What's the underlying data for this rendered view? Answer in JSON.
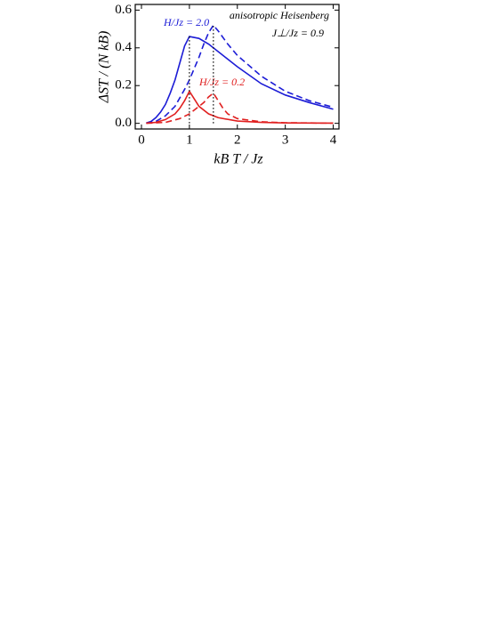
{
  "chart_data": {
    "type": "line",
    "xlabel": "kB T / Jz",
    "ylabel": "ΔST / (N kB)",
    "xlim": [
      -0.13,
      4.12
    ],
    "ylim": [
      -0.03,
      0.63
    ],
    "xticks": [
      0,
      1,
      2,
      3,
      4
    ],
    "yticks": [
      {
        "value": 0,
        "label": "0.0"
      },
      0.2,
      0.4,
      0.6
    ],
    "annotations": [
      "anisotropic Heisenberg",
      "J⊥/Jz = 0.9",
      "H/Jz = 2.0",
      "H/Jz = 0.2"
    ],
    "series": [
      {
        "color": "#1c1cd6",
        "dash": "solid",
        "x": [
          0.1,
          0.2,
          0.3,
          0.4,
          0.5,
          0.6,
          0.7,
          0.8,
          0.9,
          1.0,
          1.2,
          1.4,
          1.6,
          1.8,
          2.0,
          2.5,
          3.0,
          3.5,
          4.0
        ],
        "values": [
          0.002,
          0.01,
          0.03,
          0.06,
          0.1,
          0.16,
          0.23,
          0.32,
          0.41,
          0.46,
          0.45,
          0.42,
          0.38,
          0.34,
          0.3,
          0.21,
          0.15,
          0.11,
          0.075
        ]
      },
      {
        "color": "#1c1cd6",
        "dash": "dashed",
        "x": [
          0.1,
          0.3,
          0.5,
          0.7,
          0.9,
          1.0,
          1.1,
          1.2,
          1.3,
          1.4,
          1.5,
          1.6,
          1.8,
          2.0,
          2.5,
          3.0,
          3.5,
          4.0
        ],
        "values": [
          0.001,
          0.01,
          0.04,
          0.09,
          0.18,
          0.23,
          0.29,
          0.35,
          0.42,
          0.48,
          0.52,
          0.49,
          0.42,
          0.36,
          0.25,
          0.17,
          0.12,
          0.085
        ]
      },
      {
        "color": "#e02020",
        "dash": "solid",
        "x": [
          0.1,
          0.3,
          0.5,
          0.7,
          0.8,
          0.9,
          1.0,
          1.1,
          1.2,
          1.4,
          1.6,
          2.0,
          2.5,
          3.0,
          4.0
        ],
        "values": [
          0.001,
          0.005,
          0.02,
          0.05,
          0.08,
          0.12,
          0.17,
          0.13,
          0.09,
          0.05,
          0.03,
          0.012,
          0.005,
          0.002,
          0.001
        ]
      },
      {
        "color": "#e02020",
        "dash": "dashed",
        "x": [
          0.1,
          0.5,
          0.8,
          1.0,
          1.2,
          1.3,
          1.4,
          1.5,
          1.6,
          1.7,
          1.8,
          2.0,
          2.5,
          3.0,
          4.0
        ],
        "values": [
          0,
          0.005,
          0.025,
          0.05,
          0.09,
          0.11,
          0.14,
          0.16,
          0.12,
          0.08,
          0.05,
          0.025,
          0.008,
          0.003,
          0.001
        ]
      },
      {
        "color": "#000000",
        "dash": "dotted",
        "x": [
          1,
          1
        ],
        "values": [
          0,
          0.46
        ]
      },
      {
        "color": "#000000",
        "dash": "dotted",
        "x": [
          1.5,
          1.5
        ],
        "values": [
          0,
          0.52
        ]
      }
    ]
  }
}
